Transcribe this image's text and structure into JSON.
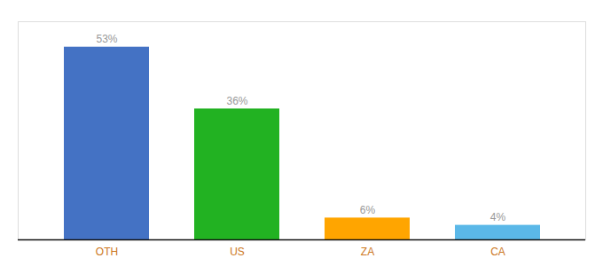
{
  "chart_data": {
    "type": "bar",
    "categories": [
      "OTH",
      "US",
      "ZA",
      "CA"
    ],
    "values": [
      53,
      36,
      6,
      4
    ],
    "value_labels": [
      "53%",
      "36%",
      "6%",
      "4%"
    ],
    "colors": [
      "#4472C4",
      "#22B222",
      "#FFA500",
      "#5BB8E8"
    ],
    "ylim": [
      0,
      60
    ],
    "data_labels": true,
    "tick_labels": "x"
  }
}
